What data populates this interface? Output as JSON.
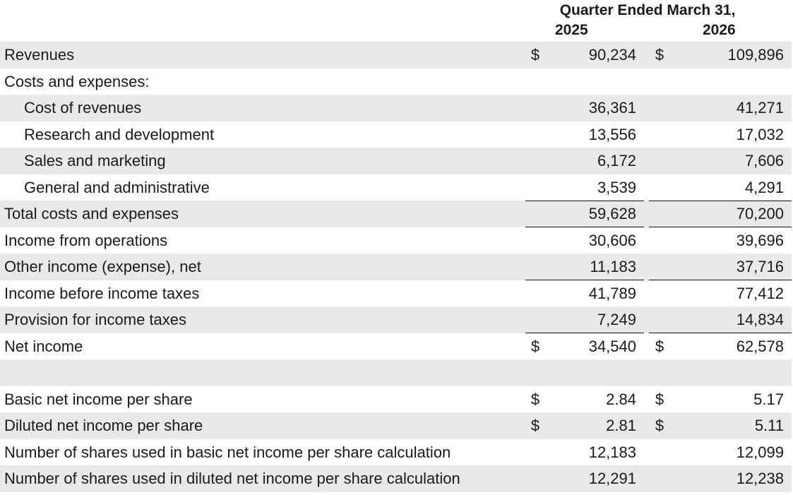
{
  "header": {
    "title": "Quarter Ended March 31,",
    "year1": "2025",
    "year2": "2026"
  },
  "rows": {
    "revenues": {
      "label": "Revenues",
      "cur1": "$",
      "v1": "90,234",
      "cur2": "$",
      "v2": "109,896"
    },
    "costs_header": {
      "label": "Costs and expenses:"
    },
    "cost_of_revenues": {
      "label": "Cost of revenues",
      "v1": "36,361",
      "v2": "41,271"
    },
    "rnd": {
      "label": "Research and development",
      "v1": "13,556",
      "v2": "17,032"
    },
    "sales_marketing": {
      "label": "Sales and marketing",
      "v1": "6,172",
      "v2": "7,606"
    },
    "gna": {
      "label": "General and administrative",
      "v1": "3,539",
      "v2": "4,291"
    },
    "total_costs": {
      "label": "Total costs and expenses",
      "v1": "59,628",
      "v2": "70,200"
    },
    "income_ops": {
      "label": "Income from operations",
      "v1": "30,606",
      "v2": "39,696"
    },
    "other_income": {
      "label": "Other income (expense), net",
      "v1": "11,183",
      "v2": "37,716"
    },
    "income_before_tax": {
      "label": "Income before income taxes",
      "v1": "41,789",
      "v2": "77,412"
    },
    "provision_tax": {
      "label": "Provision for income taxes",
      "v1": "7,249",
      "v2": "14,834"
    },
    "net_income": {
      "label": "Net income",
      "cur1": "$",
      "v1": "34,540",
      "cur2": "$",
      "v2": "62,578"
    },
    "basic_eps": {
      "label": "Basic net income per share",
      "cur1": "$",
      "v1": "2.84",
      "cur2": "$",
      "v2": "5.17"
    },
    "diluted_eps": {
      "label": "Diluted net income per share",
      "cur1": "$",
      "v1": "2.81",
      "cur2": "$",
      "v2": "5.11"
    },
    "basic_shares": {
      "label": "Number of shares used in basic net income per share calculation",
      "v1": "12,183",
      "v2": "12,099"
    },
    "diluted_shares": {
      "label": "Number of shares used in diluted net income per share calculation",
      "v1": "12,291",
      "v2": "12,238"
    }
  }
}
